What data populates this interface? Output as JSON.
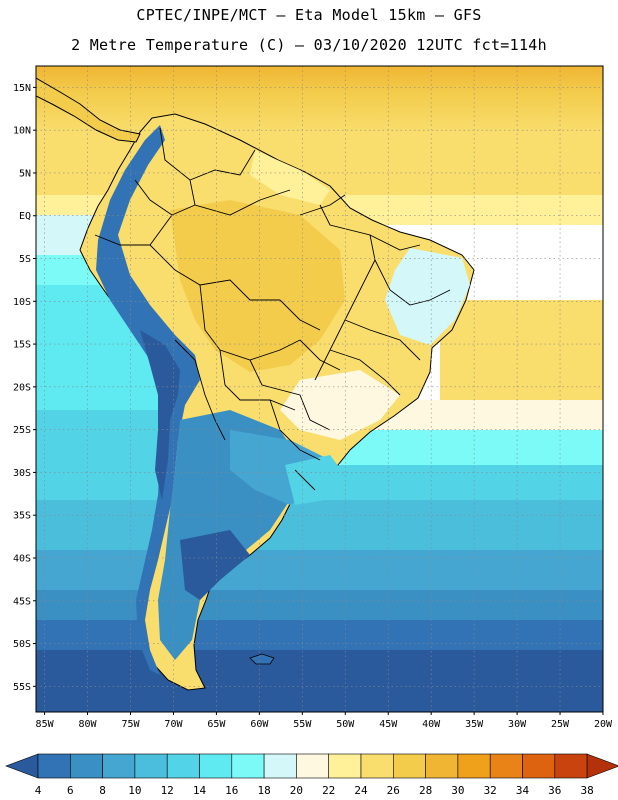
{
  "title_line1": "CPTEC/INPE/MCT –  Eta Model 15km – GFS",
  "title_line2": "2 Metre Temperature (C) – 03/10/2020 12UTC fct=114h",
  "map": {
    "lat_labels": [
      "15N",
      "10N",
      "5N",
      "EQ",
      "5S",
      "10S",
      "15S",
      "20S",
      "25S",
      "30S",
      "35S",
      "40S",
      "45S",
      "50S",
      "55S"
    ],
    "lon_labels": [
      "85W",
      "80W",
      "75W",
      "70W",
      "65W",
      "60W",
      "55W",
      "50W",
      "45W",
      "40W",
      "35W",
      "30W",
      "25W",
      "20W"
    ],
    "lat_range": [
      17.5,
      -58
    ],
    "lon_range": [
      -86,
      -20
    ],
    "grid": "dotted"
  },
  "colorbar": {
    "levels": [
      "4",
      "6",
      "8",
      "10",
      "12",
      "14",
      "16",
      "18",
      "20",
      "22",
      "24",
      "26",
      "28",
      "30",
      "32",
      "34",
      "36",
      "38"
    ],
    "colors": [
      "#2b5a9c",
      "#3273b5",
      "#3a8fc3",
      "#46a6d2",
      "#4bbedb",
      "#52d3e6",
      "#5fe9f0",
      "#7cfaf8",
      "#d4f7fa",
      "#fff8e1",
      "#fff09a",
      "#f9de6e",
      "#f3cc4c",
      "#f0b533",
      "#f0a11c",
      "#ea8317",
      "#dd6310",
      "#c8430d",
      "#b4320b"
    ]
  }
}
